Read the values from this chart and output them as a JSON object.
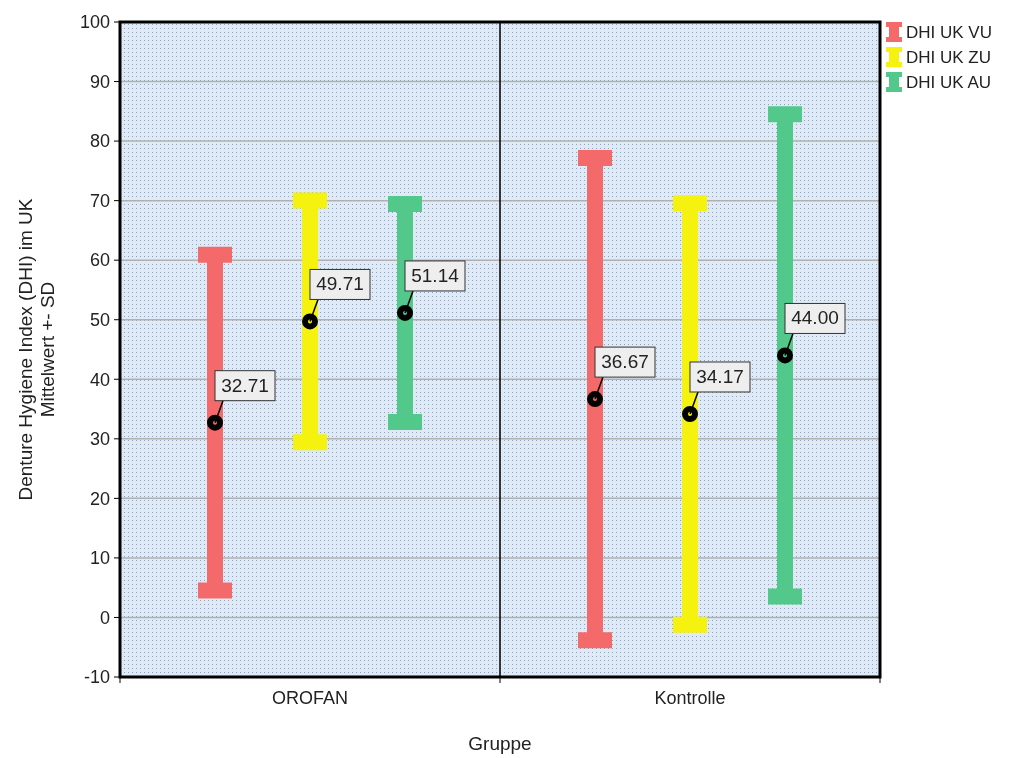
{
  "chart_data": {
    "type": "scatter",
    "xlabel": "Gruppe",
    "ylabel": "Denture Hygiene Index (DHI) im UK\nMittelwert +- SD",
    "categories": [
      "OROFAN",
      "Kontrolle"
    ],
    "series": [
      {
        "name": "DHI UK VU",
        "color": "#f46a6a",
        "values": [
          32.71,
          36.67
        ],
        "value_labels": [
          "32.71",
          "36.67"
        ],
        "errors": [
          28.2,
          40.5
        ]
      },
      {
        "name": "DHI UK ZU",
        "color": "#f5f20f",
        "values": [
          49.71,
          34.17
        ],
        "value_labels": [
          "49.71",
          "34.17"
        ],
        "errors": [
          20.3,
          35.4
        ]
      },
      {
        "name": "DHI UK AU",
        "color": "#52c98a",
        "values": [
          51.14,
          44.0
        ],
        "value_labels": [
          "51.14",
          "44.00"
        ],
        "errors": [
          18.3,
          40.5
        ]
      }
    ],
    "ylim": [
      -10,
      100
    ],
    "yticks": [
      -10,
      0,
      10,
      20,
      30,
      40,
      50,
      60,
      70,
      80,
      90,
      100
    ],
    "grid": "y",
    "legend": "top right",
    "marker": "circle",
    "data_labels": true
  }
}
